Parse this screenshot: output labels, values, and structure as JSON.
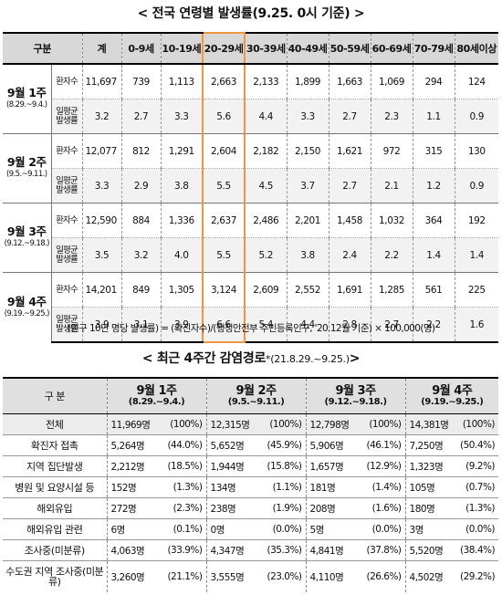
{
  "title1": {
    "main": "< 전국 연령별 발생률(9.25. 0시 기준) >"
  },
  "table1": {
    "corner": "구분",
    "headers": [
      "계",
      "0-9세",
      "10-19세",
      "20-29세",
      "30-39세",
      "40-49세",
      "50-59세",
      "60-69세",
      "70-79세",
      "80세이상"
    ],
    "sub_labels": {
      "count": "환자수",
      "avg": "일평균 발생률"
    },
    "weeks": [
      {
        "label": "9월 1주",
        "dates": "(8.29.~9.4.)",
        "count": [
          "11,697",
          "739",
          "1,113",
          "2,663",
          "2,133",
          "1,899",
          "1,663",
          "1,069",
          "294",
          "124"
        ],
        "avg": [
          "3.2",
          "2.7",
          "3.3",
          "5.6",
          "4.4",
          "3.3",
          "2.7",
          "2.3",
          "1.1",
          "0.9"
        ]
      },
      {
        "label": "9월 2주",
        "dates": "(9.5.~9.11.)",
        "count": [
          "12,077",
          "812",
          "1,291",
          "2,604",
          "2,182",
          "2,150",
          "1,621",
          "972",
          "315",
          "130"
        ],
        "avg": [
          "3.3",
          "2.9",
          "3.8",
          "5.5",
          "4.5",
          "3.7",
          "2.7",
          "2.1",
          "1.2",
          "0.9"
        ]
      },
      {
        "label": "9월 3주",
        "dates": "(9.12.~9.18.)",
        "count": [
          "12,590",
          "884",
          "1,336",
          "2,637",
          "2,486",
          "2,201",
          "1,458",
          "1,032",
          "364",
          "192"
        ],
        "avg": [
          "3.5",
          "3.2",
          "4.0",
          "5.5",
          "5.2",
          "3.8",
          "2.4",
          "2.2",
          "1.4",
          "1.4"
        ]
      },
      {
        "label": "9월 4주",
        "dates": "(9.19.~9.25.)",
        "count": [
          "14,201",
          "849",
          "1,305",
          "3,124",
          "2,609",
          "2,552",
          "1,691",
          "1,285",
          "561",
          "225"
        ],
        "avg": [
          "3.9",
          "3.1",
          "3.9",
          "6.6",
          "5.4",
          "4.4",
          "2.8",
          "2.7",
          "2.2",
          "1.6"
        ]
      }
    ]
  },
  "note": "(인구 10만 명당 발생률) = (확진자수)/(행정안전부 주민등록인구, '20.12월 기준) × 100,000(명)",
  "title2": {
    "main": "< 최근 4주간 감염경로",
    "ref": "*",
    "range": "(21.8.29.~9.25.)",
    "close": ">"
  },
  "table2": {
    "corner": "구 분",
    "weeks": [
      {
        "label": "9월 1주",
        "dates": "(8.29.~9.4.)"
      },
      {
        "label": "9월 2주",
        "dates": "(9.5.~9.11.)"
      },
      {
        "label": "9월 3주",
        "dates": "(9.12.~9.18.)"
      },
      {
        "label": "9월 4주",
        "dates": "(9.19.~9.25.)"
      }
    ],
    "rows": [
      {
        "label": "전체",
        "cells": [
          [
            "11,969명",
            "(100%)"
          ],
          [
            "12,315명",
            "(100%)"
          ],
          [
            "12,798명",
            "(100%)"
          ],
          [
            "14,381명",
            "(100%)"
          ]
        ]
      },
      {
        "label": "확진자 접촉",
        "cells": [
          [
            "5,264명",
            "(44.0%)"
          ],
          [
            "5,652명",
            "(45.9%)"
          ],
          [
            "5,906명",
            "(46.1%)"
          ],
          [
            "7,250명",
            "(50.4%)"
          ]
        ]
      },
      {
        "label": "지역 집단발생",
        "cells": [
          [
            "2,212명",
            "(18.5%)"
          ],
          [
            "1,944명",
            "(15.8%)"
          ],
          [
            "1,657명",
            "(12.9%)"
          ],
          [
            "1,323명",
            "(9.2%)"
          ]
        ]
      },
      {
        "label": "병원 및 요양시설 등",
        "cells": [
          [
            "152명",
            "(1.3%)"
          ],
          [
            "134명",
            "(1.1%)"
          ],
          [
            "181명",
            "(1.4%)"
          ],
          [
            "105명",
            "(0.7%)"
          ]
        ]
      },
      {
        "label": "해외유입",
        "cells": [
          [
            "272명",
            "(2.3%)"
          ],
          [
            "238명",
            "(1.9%)"
          ],
          [
            "208명",
            "(1.6%)"
          ],
          [
            "180명",
            "(1.3%)"
          ]
        ]
      },
      {
        "label": "해외유입 관련",
        "cells": [
          [
            "6명",
            "(0.1%)"
          ],
          [
            "0명",
            "(0.0%)"
          ],
          [
            "5명",
            "(0.0%)"
          ],
          [
            "3명",
            "(0.0%)"
          ]
        ]
      },
      {
        "label": "조사중(미분류)",
        "cells": [
          [
            "4,063명",
            "(33.9%)"
          ],
          [
            "4,347명",
            "(35.3%)"
          ],
          [
            "4,841명",
            "(37.8%)"
          ],
          [
            "5,520명",
            "(38.4%)"
          ]
        ]
      },
      {
        "label": "수도권 지역 조사중(미분류)",
        "cells": [
          [
            "3,260명",
            "(21.1%)"
          ],
          [
            "3,555명",
            "(23.0%)"
          ],
          [
            "4,110명",
            "(26.6%)"
          ],
          [
            "4,502명",
            "(29.2%)"
          ]
        ]
      }
    ]
  }
}
